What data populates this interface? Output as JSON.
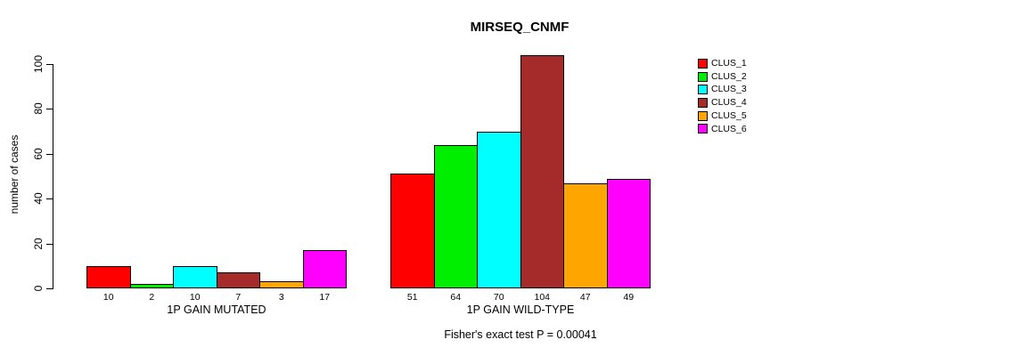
{
  "chart_data": {
    "type": "bar",
    "title": "MIRSEQ_CNMF",
    "ylabel": "number of cases",
    "ylim": [
      0,
      104
    ],
    "yticks": [
      0,
      20,
      40,
      60,
      80,
      100
    ],
    "grid": false,
    "legend_position": "right",
    "categories": [
      "1P GAIN MUTATED",
      "1P GAIN WILD-TYPE"
    ],
    "series": [
      {
        "name": "CLUS_1",
        "color": "#FF0000",
        "values": [
          10,
          51
        ]
      },
      {
        "name": "CLUS_2",
        "color": "#00EE00",
        "values": [
          2,
          64
        ]
      },
      {
        "name": "CLUS_3",
        "color": "#00FFFF",
        "values": [
          10,
          70
        ]
      },
      {
        "name": "CLUS_4",
        "color": "#A52A2A",
        "values": [
          7,
          104
        ]
      },
      {
        "name": "CLUS_5",
        "color": "#FFA500",
        "values": [
          3,
          47
        ]
      },
      {
        "name": "CLUS_6",
        "color": "#FF00FF",
        "values": [
          17,
          49
        ]
      }
    ],
    "footnote": "Fisher's exact test P = 0.00041"
  }
}
